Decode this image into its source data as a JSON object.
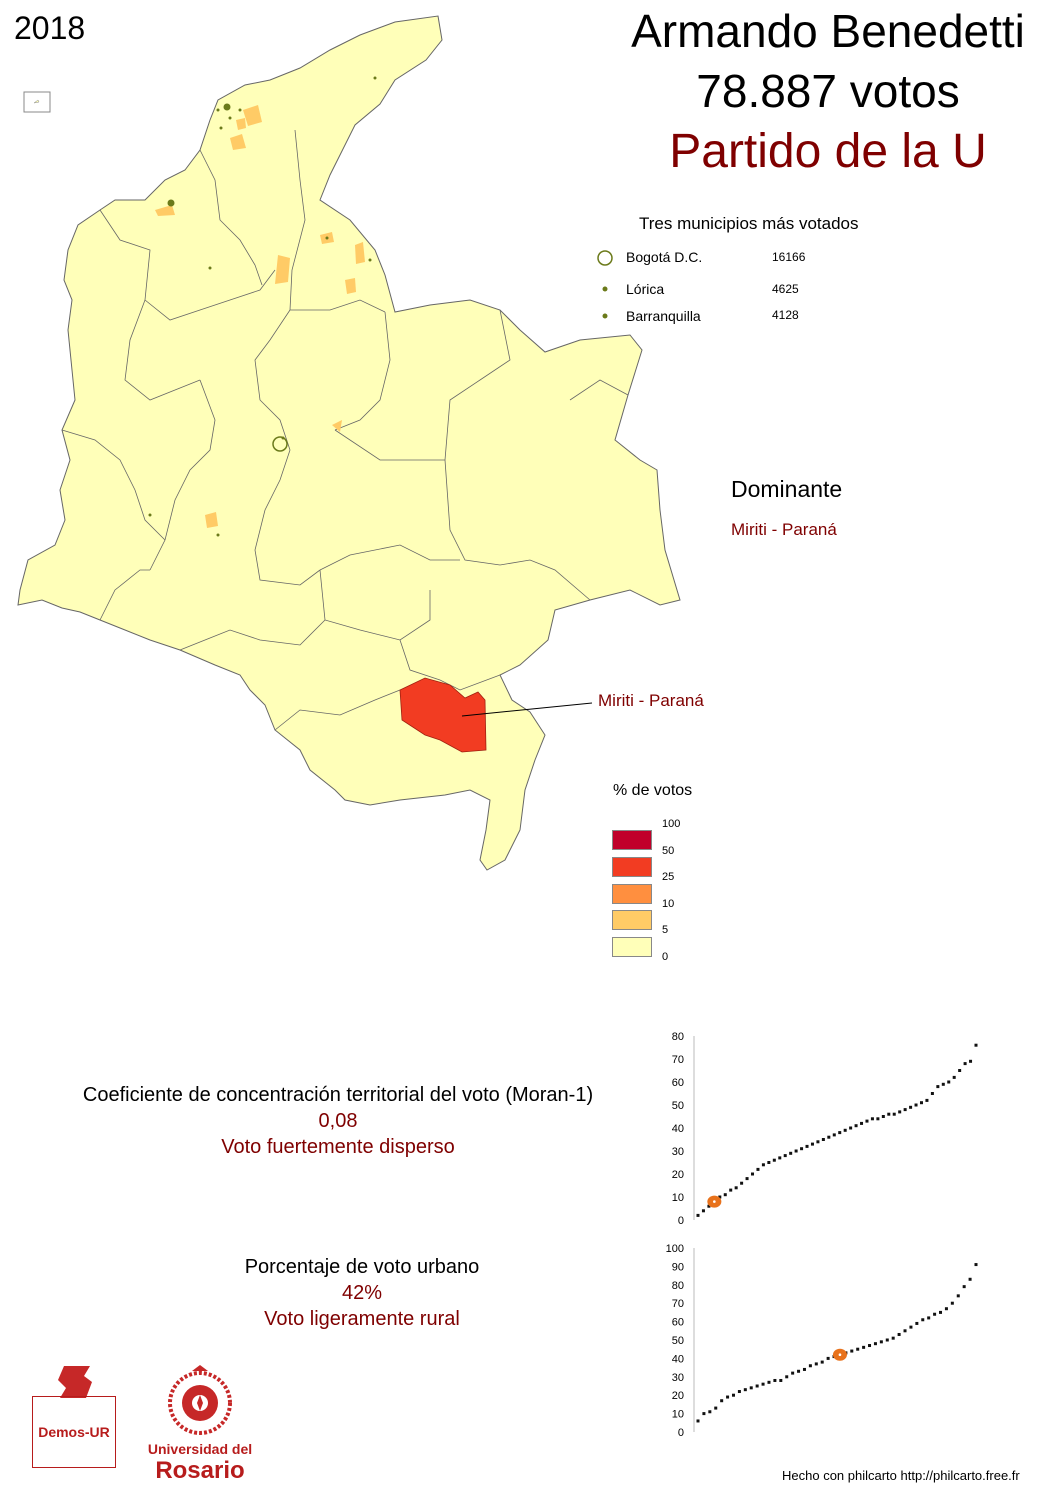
{
  "header": {
    "year": "2018",
    "candidate": "Armando Benedetti",
    "votes": "78.887 votos",
    "party": "Partido de la U"
  },
  "top_municipalities": {
    "title": "Tres municipios más votados",
    "rows": [
      {
        "name": "Bogotá D.C.",
        "votes": "16166"
      },
      {
        "name": "Lórica",
        "votes": "4625"
      },
      {
        "name": "Barranquilla",
        "votes": "4128"
      }
    ]
  },
  "dominant": {
    "title": "Dominante",
    "name": "Miriti - Paraná",
    "callout": "Miriti - Paraná"
  },
  "legend": {
    "title": "% de votos",
    "breaks": [
      "100",
      "50",
      "25",
      "10",
      "5",
      "0"
    ],
    "classes": [
      {
        "range": "50–100",
        "color": "#c0002a"
      },
      {
        "range": "25–50",
        "color": "#f23c22"
      },
      {
        "range": "10–25",
        "color": "#ff8f3f"
      },
      {
        "range": "5–10",
        "color": "#ffcb66"
      },
      {
        "range": "0–5",
        "color": "#ffffb9"
      }
    ]
  },
  "moran": {
    "title": "Coeficiente de concentración territorial del voto (Moran-1)",
    "value": "0,08",
    "label": "Voto fuertemente disperso"
  },
  "urban": {
    "title": "Porcentaje de voto urbano",
    "value": "42%",
    "label": "Voto ligeramente rural"
  },
  "chart_data": [
    {
      "type": "scatter",
      "ylim": [
        0,
        80
      ],
      "yticks": [
        "0",
        "10",
        "20",
        "30",
        "40",
        "50",
        "60",
        "70",
        "80"
      ],
      "highlight": 8,
      "values": [
        2,
        4,
        6,
        8,
        10,
        11,
        13,
        14,
        16,
        18,
        20,
        22,
        24,
        25,
        26,
        27,
        28,
        29,
        30,
        31,
        32,
        33,
        34,
        35,
        36,
        37,
        38,
        39,
        40,
        41,
        42,
        43,
        44,
        44,
        45,
        46,
        46,
        47,
        48,
        49,
        50,
        51,
        52,
        55,
        58,
        59,
        60,
        62,
        65,
        68,
        69,
        76
      ]
    },
    {
      "type": "scatter",
      "ylim": [
        0,
        100
      ],
      "yticks": [
        "0",
        "10",
        "20",
        "30",
        "40",
        "50",
        "60",
        "70",
        "80",
        "90",
        "100"
      ],
      "highlight": 42,
      "values": [
        6,
        10,
        11,
        13,
        17,
        19,
        20,
        22,
        23,
        24,
        25,
        26,
        27,
        28,
        28,
        30,
        32,
        33,
        34,
        36,
        37,
        38,
        40,
        41,
        42,
        43,
        44,
        45,
        46,
        47,
        48,
        49,
        50,
        51,
        53,
        55,
        57,
        59,
        61,
        62,
        64,
        65,
        67,
        70,
        74,
        79,
        83,
        91
      ]
    }
  ],
  "footer": "Hecho con philcarto http://philcarto.free.fr",
  "logos": {
    "demos": "Demos-UR",
    "ur_line1": "Universidad del",
    "ur_line2": "Rosario"
  }
}
